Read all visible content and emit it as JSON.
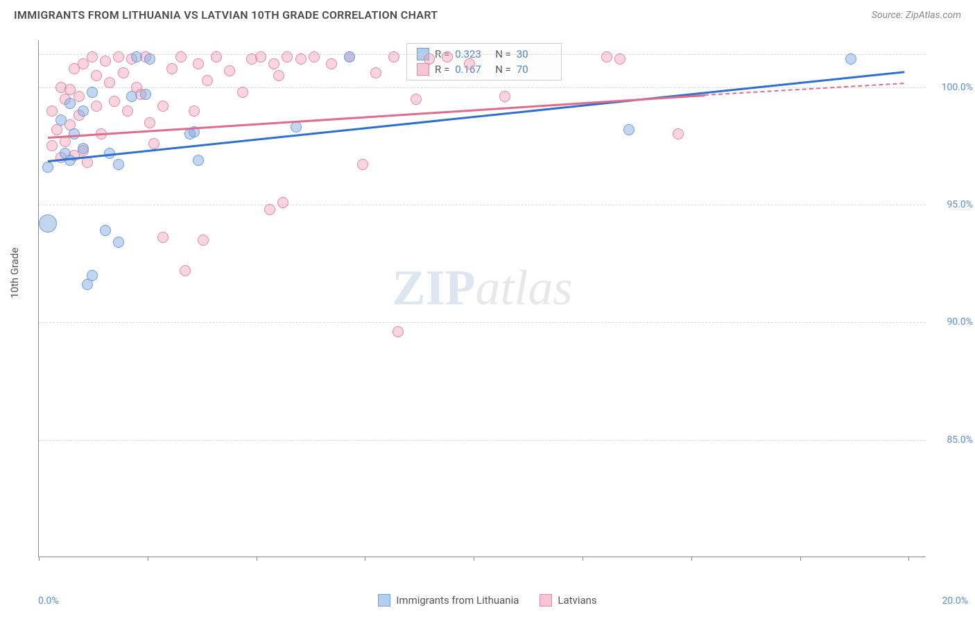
{
  "header": {
    "title": "IMMIGRANTS FROM LITHUANIA VS LATVIAN 10TH GRADE CORRELATION CHART",
    "source_label": "Source: ",
    "source_value": "ZipAtlas.com"
  },
  "chart": {
    "type": "scatter",
    "ylabel": "10th Grade",
    "xlim": [
      0,
      20
    ],
    "ylim": [
      80,
      102
    ],
    "x_axis_label_left": "0.0%",
    "x_axis_label_right": "20.0%",
    "xtick_positions": [
      0,
      2.45,
      4.9,
      7.35,
      9.8,
      12.25,
      14.7,
      17.15,
      19.6
    ],
    "yticks": [
      {
        "v": 85,
        "label": "85.0%"
      },
      {
        "v": 90,
        "label": "90.0%"
      },
      {
        "v": 95,
        "label": "95.0%"
      },
      {
        "v": 100,
        "label": "100.0%"
      }
    ],
    "grid_color": "#d8d8d8",
    "background": "#ffffff",
    "series": [
      {
        "key": "lithuania",
        "label": "Immigrants from Lithuania",
        "fill": "rgba(120,165,225,0.45)",
        "stroke": "#6f9fd8",
        "line_color": "#2d6fd0",
        "R": "0.323",
        "N": "30",
        "trend": {
          "x1": 0.2,
          "y1": 96.9,
          "x2": 19.5,
          "y2": 100.7
        },
        "points": [
          {
            "x": 0.2,
            "y": 96.6,
            "r": 8
          },
          {
            "x": 0.2,
            "y": 94.2,
            "r": 13
          },
          {
            "x": 0.5,
            "y": 98.6,
            "r": 8
          },
          {
            "x": 0.6,
            "y": 97.2,
            "r": 8
          },
          {
            "x": 0.7,
            "y": 99.3,
            "r": 8
          },
          {
            "x": 0.7,
            "y": 96.9,
            "r": 8
          },
          {
            "x": 0.8,
            "y": 98.0,
            "r": 8
          },
          {
            "x": 1.0,
            "y": 99.0,
            "r": 8
          },
          {
            "x": 1.0,
            "y": 97.4,
            "r": 8
          },
          {
            "x": 1.1,
            "y": 91.6,
            "r": 8
          },
          {
            "x": 1.2,
            "y": 92.0,
            "r": 8
          },
          {
            "x": 1.2,
            "y": 99.8,
            "r": 8
          },
          {
            "x": 1.5,
            "y": 93.9,
            "r": 8
          },
          {
            "x": 1.6,
            "y": 97.2,
            "r": 8
          },
          {
            "x": 1.8,
            "y": 96.7,
            "r": 8
          },
          {
            "x": 1.8,
            "y": 93.4,
            "r": 8
          },
          {
            "x": 2.1,
            "y": 99.6,
            "r": 8
          },
          {
            "x": 2.2,
            "y": 101.3,
            "r": 8
          },
          {
            "x": 2.4,
            "y": 99.7,
            "r": 8
          },
          {
            "x": 2.5,
            "y": 101.2,
            "r": 8
          },
          {
            "x": 3.4,
            "y": 98.0,
            "r": 8
          },
          {
            "x": 3.5,
            "y": 98.1,
            "r": 8
          },
          {
            "x": 3.6,
            "y": 96.9,
            "r": 8
          },
          {
            "x": 5.8,
            "y": 98.3,
            "r": 8
          },
          {
            "x": 7.0,
            "y": 101.3,
            "r": 8
          },
          {
            "x": 13.3,
            "y": 98.2,
            "r": 8
          },
          {
            "x": 18.3,
            "y": 101.2,
            "r": 8
          }
        ]
      },
      {
        "key": "latvians",
        "label": "Latvians",
        "fill": "rgba(240,150,175,0.40)",
        "stroke": "#e489a2",
        "line_color": "#e06b8b",
        "R": "0.167",
        "N": "70",
        "trend": {
          "x1": 0.2,
          "y1": 97.9,
          "x2": 15.0,
          "y2": 99.7
        },
        "trend_dash": {
          "x1": 15.0,
          "y1": 99.7,
          "x2": 19.5,
          "y2": 100.2
        },
        "points": [
          {
            "x": 0.3,
            "y": 97.5,
            "r": 8
          },
          {
            "x": 0.3,
            "y": 99.0,
            "r": 8
          },
          {
            "x": 0.4,
            "y": 98.2,
            "r": 8
          },
          {
            "x": 0.5,
            "y": 100.0,
            "r": 8
          },
          {
            "x": 0.5,
            "y": 97.0,
            "r": 8
          },
          {
            "x": 0.6,
            "y": 99.5,
            "r": 8
          },
          {
            "x": 0.6,
            "y": 97.7,
            "r": 8
          },
          {
            "x": 0.7,
            "y": 98.4,
            "r": 8
          },
          {
            "x": 0.7,
            "y": 99.9,
            "r": 8
          },
          {
            "x": 0.8,
            "y": 97.1,
            "r": 8
          },
          {
            "x": 0.8,
            "y": 100.8,
            "r": 8
          },
          {
            "x": 0.9,
            "y": 98.8,
            "r": 8
          },
          {
            "x": 0.9,
            "y": 99.6,
            "r": 8
          },
          {
            "x": 1.0,
            "y": 97.3,
            "r": 8
          },
          {
            "x": 1.0,
            "y": 101.0,
            "r": 8
          },
          {
            "x": 1.1,
            "y": 96.8,
            "r": 8
          },
          {
            "x": 1.2,
            "y": 101.3,
            "r": 8
          },
          {
            "x": 1.3,
            "y": 99.2,
            "r": 8
          },
          {
            "x": 1.3,
            "y": 100.5,
            "r": 8
          },
          {
            "x": 1.4,
            "y": 98.0,
            "r": 8
          },
          {
            "x": 1.5,
            "y": 101.1,
            "r": 8
          },
          {
            "x": 1.6,
            "y": 100.2,
            "r": 8
          },
          {
            "x": 1.7,
            "y": 99.4,
            "r": 8
          },
          {
            "x": 1.8,
            "y": 101.3,
            "r": 8
          },
          {
            "x": 1.9,
            "y": 100.6,
            "r": 8
          },
          {
            "x": 2.0,
            "y": 99.0,
            "r": 8
          },
          {
            "x": 2.1,
            "y": 101.2,
            "r": 8
          },
          {
            "x": 2.2,
            "y": 100.0,
            "r": 8
          },
          {
            "x": 2.3,
            "y": 99.7,
            "r": 8
          },
          {
            "x": 2.4,
            "y": 101.3,
            "r": 8
          },
          {
            "x": 2.5,
            "y": 98.5,
            "r": 8
          },
          {
            "x": 2.6,
            "y": 97.6,
            "r": 8
          },
          {
            "x": 2.8,
            "y": 99.2,
            "r": 8
          },
          {
            "x": 2.8,
            "y": 93.6,
            "r": 8
          },
          {
            "x": 3.0,
            "y": 100.8,
            "r": 8
          },
          {
            "x": 3.2,
            "y": 101.3,
            "r": 8
          },
          {
            "x": 3.3,
            "y": 92.2,
            "r": 8
          },
          {
            "x": 3.5,
            "y": 99.0,
            "r": 8
          },
          {
            "x": 3.6,
            "y": 101.0,
            "r": 8
          },
          {
            "x": 3.7,
            "y": 93.5,
            "r": 8
          },
          {
            "x": 3.8,
            "y": 100.3,
            "r": 8
          },
          {
            "x": 4.0,
            "y": 101.3,
            "r": 8
          },
          {
            "x": 4.3,
            "y": 100.7,
            "r": 8
          },
          {
            "x": 4.6,
            "y": 99.8,
            "r": 8
          },
          {
            "x": 4.8,
            "y": 101.2,
            "r": 8
          },
          {
            "x": 5.0,
            "y": 101.3,
            "r": 8
          },
          {
            "x": 5.2,
            "y": 94.8,
            "r": 8
          },
          {
            "x": 5.3,
            "y": 101.0,
            "r": 8
          },
          {
            "x": 5.4,
            "y": 100.5,
            "r": 8
          },
          {
            "x": 5.5,
            "y": 95.1,
            "r": 8
          },
          {
            "x": 5.6,
            "y": 101.3,
            "r": 8
          },
          {
            "x": 5.9,
            "y": 101.2,
            "r": 8
          },
          {
            "x": 6.2,
            "y": 101.3,
            "r": 8
          },
          {
            "x": 6.6,
            "y": 101.0,
            "r": 8
          },
          {
            "x": 7.0,
            "y": 101.3,
            "r": 8
          },
          {
            "x": 7.3,
            "y": 96.7,
            "r": 8
          },
          {
            "x": 7.6,
            "y": 100.6,
            "r": 8
          },
          {
            "x": 8.0,
            "y": 101.3,
            "r": 8
          },
          {
            "x": 8.1,
            "y": 89.6,
            "r": 8
          },
          {
            "x": 8.5,
            "y": 99.5,
            "r": 8
          },
          {
            "x": 8.8,
            "y": 101.2,
            "r": 8
          },
          {
            "x": 9.2,
            "y": 101.3,
            "r": 8
          },
          {
            "x": 9.7,
            "y": 101.0,
            "r": 8
          },
          {
            "x": 10.5,
            "y": 99.6,
            "r": 8
          },
          {
            "x": 12.8,
            "y": 101.3,
            "r": 8
          },
          {
            "x": 13.1,
            "y": 101.2,
            "r": 8
          },
          {
            "x": 14.4,
            "y": 98.0,
            "r": 8
          }
        ]
      }
    ],
    "watermark": {
      "z": "Z",
      "ip": "IP",
      "atlas": "atlas"
    }
  },
  "legend_swatch": {
    "blue_fill": "rgba(120,165,225,0.55)",
    "blue_stroke": "#6f9fd8",
    "pink_fill": "rgba(240,150,175,0.55)",
    "pink_stroke": "#e489a2"
  }
}
